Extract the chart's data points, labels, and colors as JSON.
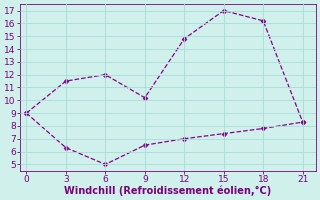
{
  "line1_x": [
    0,
    3,
    6,
    9,
    12,
    15,
    18,
    21
  ],
  "line1_y": [
    9,
    11.5,
    12.0,
    10.2,
    14.8,
    17.0,
    16.2,
    8.3
  ],
  "line2_x": [
    0,
    3,
    6,
    9,
    12,
    15,
    18,
    21
  ],
  "line2_y": [
    9,
    6.3,
    5.0,
    6.5,
    7.0,
    7.4,
    7.8,
    8.3
  ],
  "line_color": "#8B008B",
  "marker": "D",
  "markersize": 2.5,
  "linewidth": 0.9,
  "linestyle": "--",
  "xlabel": "Windchill (Refroidissement éolien,°C)",
  "xlabel_fontsize": 7,
  "bg_color": "#cff0eb",
  "grid_color": "#a8ddd6",
  "tick_color": "#7B007B",
  "xlim": [
    -0.5,
    22.0
  ],
  "ylim": [
    4.5,
    17.5
  ],
  "xticks": [
    0,
    3,
    6,
    9,
    12,
    15,
    18,
    21
  ],
  "yticks": [
    5,
    6,
    7,
    8,
    9,
    10,
    11,
    12,
    13,
    14,
    15,
    16,
    17
  ],
  "tick_fontsize": 6.5
}
